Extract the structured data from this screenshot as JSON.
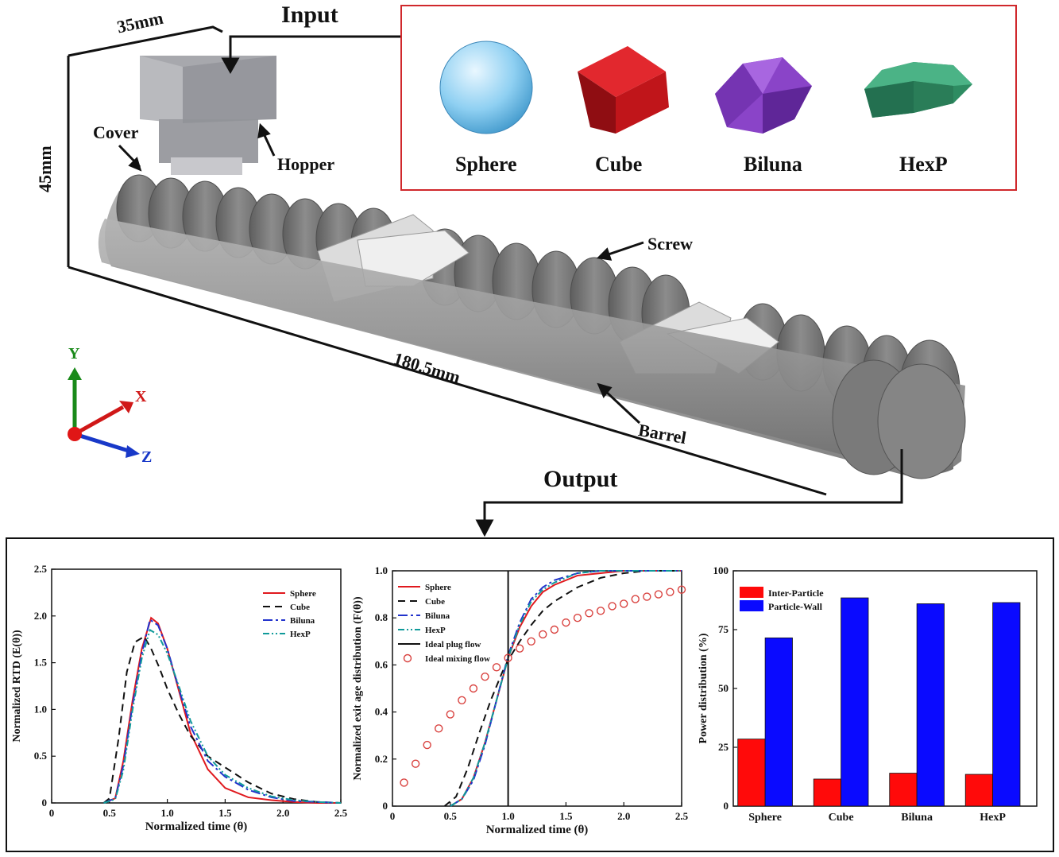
{
  "labels": {
    "input": "Input",
    "output": "Output",
    "dim_width": "35mm",
    "dim_height": "45mm",
    "dim_length": "180.5mm",
    "cover": "Cover",
    "hopper": "Hopper",
    "screw": "Screw",
    "barrel": "Barrel"
  },
  "axes_triad": {
    "y": "Y",
    "x": "X",
    "z": "Z"
  },
  "shapes": [
    {
      "name": "Sphere",
      "color": "#8fd0f2"
    },
    {
      "name": "Cube",
      "color": "#c0151a"
    },
    {
      "name": "Biluna",
      "color": "#8a44c8"
    },
    {
      "name": "HexP",
      "color": "#2e8c62"
    }
  ],
  "chart_data": [
    {
      "type": "line",
      "xlabel": "Normalized time (θ)",
      "ylabel": "Normalized RTD (E(θ))",
      "xlim": [
        0,
        2.5
      ],
      "ylim": [
        0,
        2.5
      ],
      "xticks": [
        "0",
        "0.5",
        "1.0",
        "1.5",
        "2.0",
        "2.5"
      ],
      "yticks": [
        "0",
        "0.5",
        "1.0",
        "1.5",
        "2.0",
        "2.5"
      ],
      "legend_position": "top-right",
      "series": [
        {
          "name": "Sphere",
          "color": "#e0191e",
          "dash": "",
          "x": [
            0.45,
            0.55,
            0.62,
            0.7,
            0.78,
            0.86,
            0.92,
            1.0,
            1.1,
            1.2,
            1.35,
            1.5,
            1.7,
            1.9,
            2.1,
            2.3,
            2.5
          ],
          "y": [
            0,
            0.05,
            0.45,
            1.1,
            1.65,
            1.98,
            1.92,
            1.65,
            1.2,
            0.75,
            0.36,
            0.16,
            0.06,
            0.03,
            0.01,
            0,
            0
          ]
        },
        {
          "name": "Cube",
          "color": "#111111",
          "dash": "9,6",
          "x": [
            0.45,
            0.5,
            0.58,
            0.65,
            0.72,
            0.8,
            0.86,
            0.93,
            1.0,
            1.1,
            1.2,
            1.35,
            1.5,
            1.7,
            1.9,
            2.1,
            2.3,
            2.5
          ],
          "y": [
            0,
            0.05,
            0.7,
            1.4,
            1.72,
            1.78,
            1.65,
            1.45,
            1.22,
            0.95,
            0.72,
            0.5,
            0.38,
            0.22,
            0.1,
            0.04,
            0.01,
            0
          ]
        },
        {
          "name": "Biluna",
          "color": "#2233cc",
          "dash": "12,4,3,4",
          "x": [
            0.45,
            0.55,
            0.62,
            0.7,
            0.78,
            0.85,
            0.92,
            1.0,
            1.1,
            1.2,
            1.35,
            1.5,
            1.7,
            1.9,
            2.1,
            2.3,
            2.5
          ],
          "y": [
            0,
            0.05,
            0.4,
            1.05,
            1.6,
            1.96,
            1.9,
            1.65,
            1.22,
            0.82,
            0.45,
            0.28,
            0.14,
            0.06,
            0.02,
            0.01,
            0
          ]
        },
        {
          "name": "HexP",
          "color": "#109a9a",
          "dash": "8,3,2,3,2,3",
          "x": [
            0.45,
            0.55,
            0.62,
            0.7,
            0.78,
            0.85,
            0.92,
            1.0,
            1.1,
            1.2,
            1.35,
            1.5,
            1.7,
            1.9,
            2.1,
            2.3,
            2.5
          ],
          "y": [
            0,
            0.04,
            0.35,
            1.0,
            1.55,
            1.85,
            1.8,
            1.6,
            1.25,
            0.88,
            0.5,
            0.3,
            0.16,
            0.07,
            0.03,
            0.01,
            0
          ]
        }
      ]
    },
    {
      "type": "line",
      "xlabel": "Normalized time (θ)",
      "ylabel": "Normalized exit age distribution (F(θ))",
      "xlim": [
        0,
        2.5
      ],
      "ylim": [
        0,
        1.0
      ],
      "xticks": [
        "0",
        "0.5",
        "1.0",
        "1.5",
        "2.0",
        "2.5"
      ],
      "yticks": [
        "0",
        "0.2",
        "0.4",
        "0.6",
        "0.8",
        "1.0"
      ],
      "legend_position": "top-left",
      "series": [
        {
          "name": "Sphere",
          "color": "#e0191e",
          "dash": "",
          "x": [
            0.5,
            0.6,
            0.7,
            0.8,
            0.9,
            1.0,
            1.1,
            1.2,
            1.3,
            1.4,
            1.6,
            1.8,
            2.0,
            2.2,
            2.5
          ],
          "y": [
            0,
            0.03,
            0.12,
            0.27,
            0.45,
            0.63,
            0.76,
            0.85,
            0.91,
            0.94,
            0.98,
            0.99,
            1.0,
            1.0,
            1.0
          ]
        },
        {
          "name": "Cube",
          "color": "#111111",
          "dash": "9,6",
          "x": [
            0.45,
            0.55,
            0.65,
            0.75,
            0.85,
            0.95,
            1.0,
            1.1,
            1.2,
            1.3,
            1.4,
            1.6,
            1.8,
            2.0,
            2.2,
            2.5
          ],
          "y": [
            0,
            0.04,
            0.16,
            0.31,
            0.45,
            0.57,
            0.62,
            0.7,
            0.77,
            0.83,
            0.87,
            0.93,
            0.97,
            0.99,
            1.0,
            1.0
          ]
        },
        {
          "name": "Biluna",
          "color": "#2233cc",
          "dash": "12,4,3,4",
          "x": [
            0.5,
            0.6,
            0.7,
            0.8,
            0.9,
            1.0,
            1.1,
            1.2,
            1.3,
            1.4,
            1.6,
            1.8,
            2.0,
            2.2,
            2.5
          ],
          "y": [
            0,
            0.03,
            0.11,
            0.26,
            0.45,
            0.64,
            0.78,
            0.88,
            0.93,
            0.96,
            0.99,
            1.0,
            1.0,
            1.0,
            1.0
          ]
        },
        {
          "name": "HexP",
          "color": "#109a9a",
          "dash": "8,3,2,3,2,3",
          "x": [
            0.5,
            0.6,
            0.7,
            0.8,
            0.9,
            1.0,
            1.1,
            1.2,
            1.3,
            1.4,
            1.6,
            1.8,
            2.0,
            2.2,
            2.5
          ],
          "y": [
            0,
            0.03,
            0.12,
            0.27,
            0.45,
            0.63,
            0.77,
            0.87,
            0.92,
            0.95,
            0.99,
            1.0,
            1.0,
            1.0,
            1.0
          ]
        },
        {
          "name": "Ideal plug flow",
          "color": "#111111",
          "dash": "",
          "x": [
            1.0,
            1.0
          ],
          "y": [
            0,
            1.0
          ]
        },
        {
          "name": "Ideal mixing flow",
          "color": "#d9423f",
          "marker": "circle",
          "x": [
            0.1,
            0.2,
            0.3,
            0.4,
            0.5,
            0.6,
            0.7,
            0.8,
            0.9,
            1.0,
            1.1,
            1.2,
            1.3,
            1.4,
            1.5,
            1.6,
            1.7,
            1.8,
            1.9,
            2.0,
            2.1,
            2.2,
            2.3,
            2.4,
            2.5
          ],
          "y": [
            0.1,
            0.18,
            0.26,
            0.33,
            0.39,
            0.45,
            0.5,
            0.55,
            0.59,
            0.63,
            0.67,
            0.7,
            0.73,
            0.75,
            0.78,
            0.8,
            0.82,
            0.83,
            0.85,
            0.86,
            0.88,
            0.89,
            0.9,
            0.91,
            0.92
          ]
        }
      ]
    },
    {
      "type": "bar",
      "ylabel": "Power distribution (%)",
      "ylim": [
        0,
        100
      ],
      "yticks": [
        "0",
        "25",
        "50",
        "75",
        "100"
      ],
      "categories": [
        "Sphere",
        "Cube",
        "Biluna",
        "HexP"
      ],
      "legend_position": "top-left",
      "series": [
        {
          "name": "Inter-Particle",
          "color": "#ff0a0a",
          "values": [
            28.5,
            11.5,
            14,
            13.5
          ]
        },
        {
          "name": "Particle-Wall",
          "color": "#0a0aff",
          "values": [
            71.5,
            88.5,
            86,
            86.5
          ]
        }
      ]
    }
  ]
}
